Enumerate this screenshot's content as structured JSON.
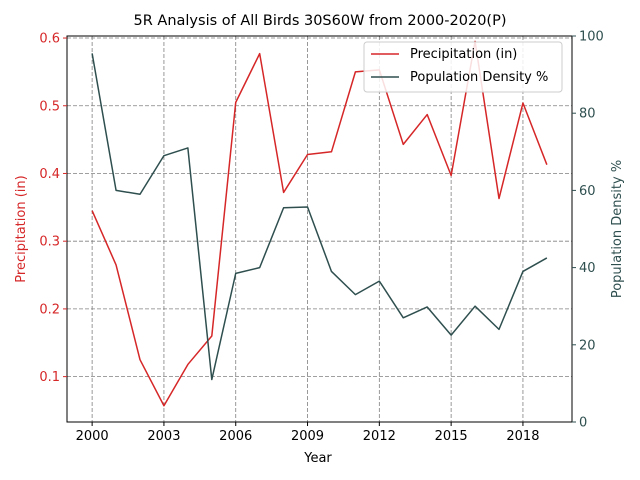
{
  "chart_data": {
    "type": "line",
    "title": "5R Analysis of All Birds 30S60W from 2000-2020(P)",
    "xlabel": "Year",
    "ylabel_left": "Precipitation (in)",
    "ylabel_right": "Population Density %",
    "x": [
      2000,
      2001,
      2002,
      2003,
      2004,
      2005,
      2006,
      2007,
      2008,
      2009,
      2010,
      2011,
      2012,
      2013,
      2014,
      2015,
      2016,
      2017,
      2018,
      2019
    ],
    "xlim": [
      1998.95,
      2020.05
    ],
    "xticks": [
      2000,
      2003,
      2006,
      2009,
      2012,
      2015,
      2018
    ],
    "series": [
      {
        "name": "Precipitation (in)",
        "axis": "left",
        "color": "#d62728",
        "values": [
          0.345,
          0.265,
          0.125,
          0.057,
          0.118,
          0.16,
          0.505,
          0.577,
          0.372,
          0.428,
          0.432,
          0.55,
          0.553,
          0.443,
          0.487,
          0.397,
          0.595,
          0.363,
          0.504,
          0.413
        ]
      },
      {
        "name": "Population Density %",
        "axis": "right",
        "color": "#2f4f4f",
        "values": [
          95.5,
          60.0,
          59.0,
          69.0,
          71.0,
          11.0,
          38.5,
          40.0,
          55.5,
          55.7,
          39.0,
          33.0,
          36.5,
          27.0,
          29.8,
          22.5,
          30.0,
          24.0,
          39.0,
          42.5
        ]
      }
    ],
    "ylim_left": [
      0.033,
      0.603
    ],
    "yticks_left": [
      0.1,
      0.2,
      0.3,
      0.4,
      0.5,
      0.6
    ],
    "ylim_right": [
      0,
      100
    ],
    "yticks_right": [
      0,
      20,
      40,
      60,
      80,
      100
    ],
    "grid": true,
    "grid_color": "#808080",
    "axis_color_left": "#d62728",
    "axis_color_right": "#2f4f4f",
    "legend_position": "top-right"
  }
}
